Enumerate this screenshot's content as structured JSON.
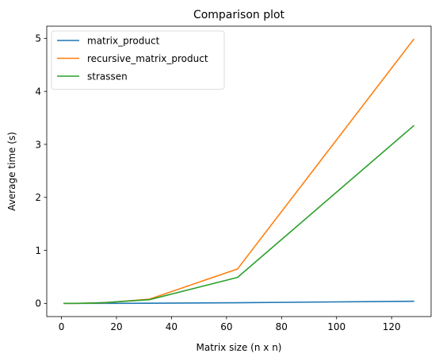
{
  "chart_data": {
    "type": "line",
    "title": "Comparison plot",
    "xlabel": "Matrix size (n x n)",
    "ylabel": "Average time (s)",
    "x": [
      1,
      2,
      4,
      8,
      16,
      32,
      64,
      128
    ],
    "xlim": [
      -5.35,
      134.35
    ],
    "ylim": [
      -0.249,
      5.23
    ],
    "xticks": [
      0,
      20,
      40,
      60,
      80,
      100,
      120
    ],
    "yticks": [
      0,
      1,
      2,
      3,
      4,
      5
    ],
    "grid": false,
    "legend_position": "top-left",
    "series": [
      {
        "name": "matrix_product",
        "color": "#1f77b4",
        "values": [
          0.0,
          0.0,
          0.0,
          0.0,
          0.0,
          0.003,
          0.012,
          0.04
        ]
      },
      {
        "name": "recursive_matrix_product",
        "color": "#ff7f0e",
        "values": [
          0.0,
          0.0,
          0.0,
          0.002,
          0.012,
          0.08,
          0.65,
          4.98
        ]
      },
      {
        "name": "strassen",
        "color": "#2ca02c",
        "values": [
          0.0,
          0.0,
          0.0,
          0.002,
          0.015,
          0.07,
          0.49,
          3.35
        ]
      }
    ]
  }
}
